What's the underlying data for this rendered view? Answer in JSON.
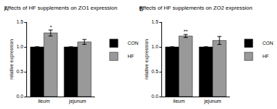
{
  "chart_data": [
    {
      "type": "bar",
      "title": "Effects of HF supplements on ZO1 expression",
      "ylabel": "relative expression",
      "categories": [
        "ileum",
        "jejunum"
      ],
      "series": [
        {
          "name": "CON",
          "color": "#000000",
          "values": [
            1.0,
            1.0
          ],
          "errors": [
            0,
            0
          ]
        },
        {
          "name": "HF",
          "color": "#999999",
          "values": [
            1.28,
            1.1
          ],
          "errors": [
            0.06,
            0.05
          ]
        }
      ],
      "ylim": [
        0,
        1.5
      ],
      "yticks": [
        {
          "value": 0,
          "label": "0.0"
        },
        {
          "value": 0.5,
          "label": "0.5"
        },
        {
          "value": 1,
          "label": "1.0"
        },
        {
          "value": 1.5,
          "label": "1.5"
        }
      ],
      "legend": "right",
      "annotations": [
        {
          "text": "A"
        },
        {
          "text": "*",
          "category": "ileum",
          "series": "HF"
        }
      ]
    },
    {
      "type": "bar",
      "title": "Effects of HF supplements on ZO2 expression",
      "ylabel": "relative expression",
      "categories": [
        "ileum",
        "jejunum"
      ],
      "series": [
        {
          "name": "CON",
          "color": "#000000",
          "values": [
            1.0,
            1.0
          ],
          "errors": [
            0,
            0
          ]
        },
        {
          "name": "HF",
          "color": "#999999",
          "values": [
            1.22,
            1.13
          ],
          "errors": [
            0.03,
            0.08
          ]
        }
      ],
      "ylim": [
        0,
        1.5
      ],
      "yticks": [
        {
          "value": 0,
          "label": "0.0"
        },
        {
          "value": 0.5,
          "label": "0.5"
        },
        {
          "value": 1,
          "label": "1.0"
        },
        {
          "value": 1.5,
          "label": "1.5"
        }
      ],
      "legend": "right",
      "annotations": [
        {
          "text": "B"
        },
        {
          "text": "**",
          "category": "ileum",
          "series": "HF"
        }
      ]
    }
  ]
}
